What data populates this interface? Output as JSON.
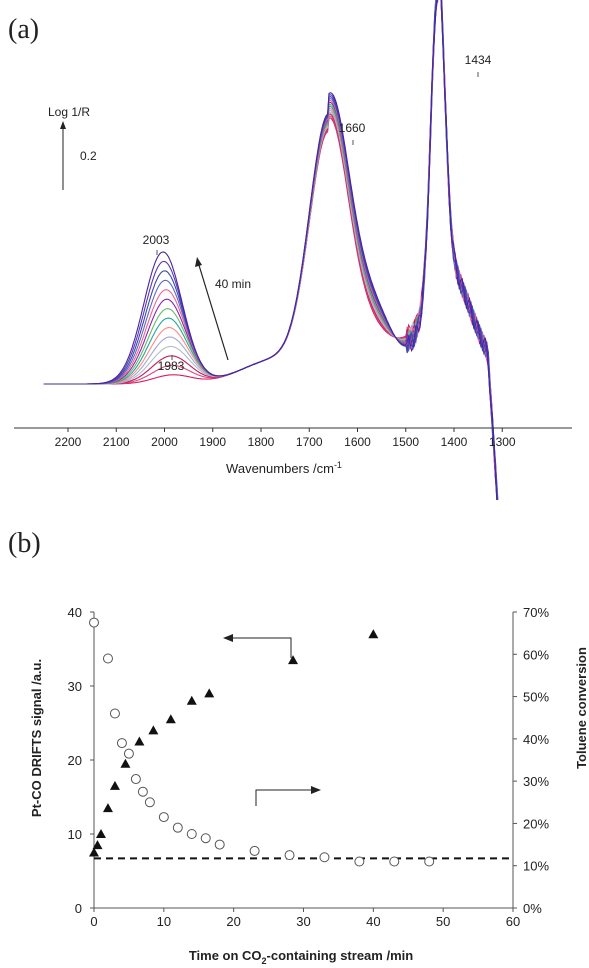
{
  "panel_labels": [
    "(a)",
    "(b)"
  ],
  "chart_data": [
    {
      "type": "line",
      "panel": "(a)",
      "xlabel": "Wavenumbers /cm",
      "xlabel_sup": "-1",
      "ylabel": "Log 1/R",
      "scale_bar_label": "0.2",
      "x_ticks": [
        2200,
        2100,
        2000,
        1900,
        1800,
        1700,
        1600,
        1500,
        1400,
        1300
      ],
      "xlim": [
        2250,
        1270
      ],
      "x_reversed": true,
      "annotations": [
        {
          "text": "2003",
          "x": 2003
        },
        {
          "text": "1983",
          "x": 1983
        },
        {
          "text": "1660",
          "x": 1660
        },
        {
          "text": "1434",
          "x": 1434
        },
        {
          "text": "40 min"
        }
      ],
      "n_spectra": 14,
      "peak_height_range": [
        0.03,
        0.44
      ],
      "series_colors": [
        "#d81b60",
        "#e0457b",
        "#c2185b",
        "#b0bec5",
        "#9fa8da",
        "#ff8a80",
        "#26a69a",
        "#66bb6a",
        "#8e24aa",
        "#f06292",
        "#5c6bc0",
        "#3949ab",
        "#5e35b1",
        "#4527a0"
      ]
    },
    {
      "type": "scatter",
      "panel": "(b)",
      "xlabel": "Time on CO",
      "xlabel_sub": "2",
      "xlabel_rest": "-containing stream /min",
      "ylabel_left": "Pt-CO DRIFTS signal /a.u.",
      "ylabel_right": "Toluene conversion",
      "xlim": [
        0,
        60
      ],
      "ylim_left": [
        0,
        40
      ],
      "ylim_right": [
        0,
        70
      ],
      "x_ticks": [
        "0",
        "10",
        "20",
        "30",
        "40",
        "50",
        "60"
      ],
      "y_left_ticks": [
        "0",
        "10",
        "20",
        "30",
        "40"
      ],
      "y_right_ticks": [
        "0%",
        "10%",
        "20%",
        "30%",
        "40%",
        "50%",
        "60%",
        "70%"
      ],
      "series": [
        {
          "marker": "filled-triangle",
          "axis": "left",
          "x": [
            0,
            0.5,
            1,
            2,
            3,
            4.5,
            6.5,
            8.5,
            11,
            14,
            16.5,
            28.5,
            40
          ],
          "y": [
            7.5,
            8.5,
            10,
            13.5,
            16.5,
            19.5,
            22.5,
            24,
            25.5,
            28,
            29,
            33.5,
            37
          ]
        },
        {
          "marker": "open-circle",
          "axis": "right",
          "x": [
            0,
            2,
            3,
            4,
            5,
            6,
            7,
            8,
            10,
            12,
            14,
            16,
            18,
            23,
            28,
            33,
            38,
            43,
            48
          ],
          "y": [
            67.5,
            59,
            46,
            39,
            36.5,
            30.5,
            27.5,
            25,
            21.5,
            19,
            17.5,
            16.5,
            15,
            13.5,
            12.5,
            12,
            11,
            11,
            11
          ]
        }
      ],
      "reference_line": {
        "axis": "left",
        "y": 6.7,
        "style": "dashed"
      }
    }
  ]
}
